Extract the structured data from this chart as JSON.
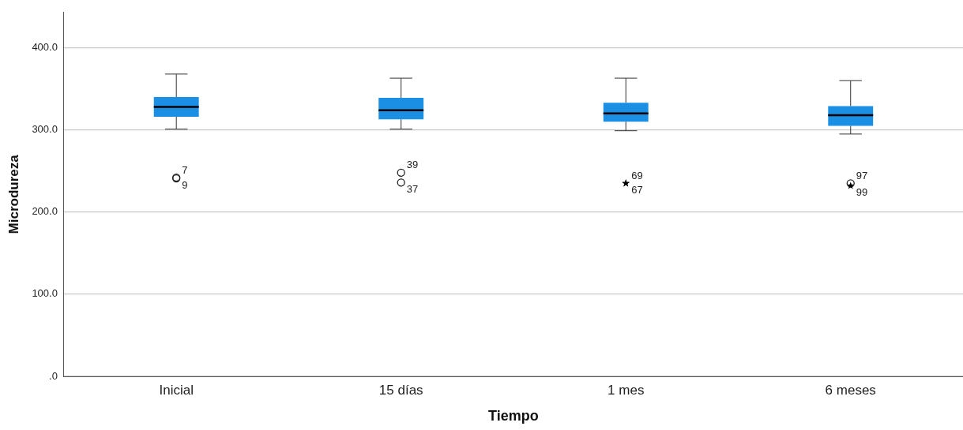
{
  "chart_data": {
    "type": "box",
    "xlabel": "Tiempo",
    "ylabel": "Microdureza",
    "categories": [
      "Inicial",
      "15 días",
      "1 mes",
      "6 meses"
    ],
    "color": "#1a8fe3",
    "boxes": [
      {
        "low": 301,
        "q1": 316,
        "median": 328,
        "q3": 340,
        "high": 368
      },
      {
        "low": 301,
        "q1": 313,
        "median": 324,
        "q3": 339,
        "high": 363
      },
      {
        "low": 299,
        "q1": 310,
        "median": 320,
        "q3": 333,
        "high": 363
      },
      {
        "low": 295,
        "q1": 305,
        "median": 318,
        "q3": 329,
        "high": 360
      }
    ],
    "series": [
      {
        "type": "scatter",
        "marker": "circle",
        "color": "#222222",
        "x": [
          "Inicial",
          "Inicial",
          "15 días",
          "15 días",
          "6 meses"
        ],
        "values": [
          242,
          241,
          248,
          236,
          235
        ]
      },
      {
        "type": "scatter",
        "marker": "star",
        "color": "#000000",
        "x": [
          "1 mes",
          "1 mes",
          "6 meses"
        ],
        "values": [
          235,
          235,
          232
        ]
      }
    ],
    "ylim": [
      0,
      443
    ],
    "yticks": [
      {
        "value": 0,
        "label": ".0"
      },
      {
        "value": 100,
        "label": "100.0"
      },
      {
        "value": 200,
        "label": "200.0"
      },
      {
        "value": 300,
        "label": "300.0"
      },
      {
        "value": 400,
        "label": "400.0"
      }
    ],
    "grid": "y",
    "annotations": [
      {
        "text": "7",
        "x": "Inicial",
        "y": 242
      },
      {
        "text": "9",
        "x": "Inicial",
        "y": 241
      },
      {
        "text": "39",
        "x": "15 días",
        "y": 248
      },
      {
        "text": "37",
        "x": "15 días",
        "y": 236
      },
      {
        "text": "69",
        "x": "1 mes",
        "y": 235
      },
      {
        "text": "67",
        "x": "1 mes",
        "y": 235
      },
      {
        "text": "97",
        "x": "6 meses",
        "y": 235
      },
      {
        "text": "99",
        "x": "6 meses",
        "y": 232
      }
    ]
  }
}
